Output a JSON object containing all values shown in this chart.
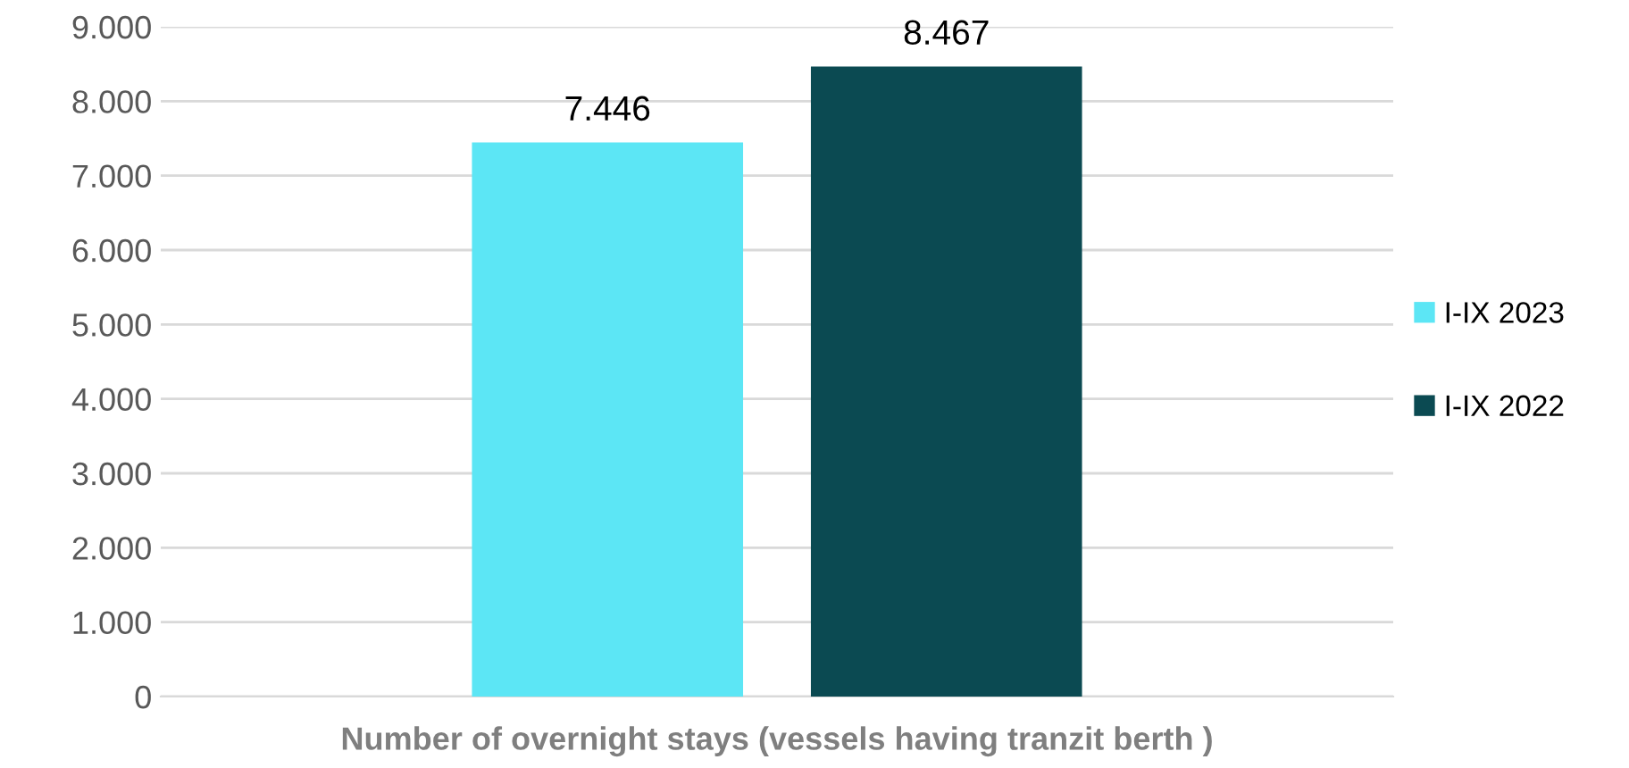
{
  "chart_data": {
    "type": "bar",
    "categories": [
      "Number of overnight stays (vessels having tranzit berth )"
    ],
    "series": [
      {
        "name": "I-IX 2023",
        "color": "#5ce6f5",
        "values": [
          7446
        ],
        "value_labels": [
          "7.446"
        ]
      },
      {
        "name": "I-IX 2022",
        "color": "#0b4a52",
        "values": [
          8467
        ],
        "value_labels": [
          "8.467"
        ]
      }
    ],
    "ylim": [
      0,
      9000
    ],
    "yticks": [
      {
        "value": 0,
        "label": "0"
      },
      {
        "value": 1000,
        "label": "1.000"
      },
      {
        "value": 2000,
        "label": "2.000"
      },
      {
        "value": 3000,
        "label": "3.000"
      },
      {
        "value": 4000,
        "label": "4.000"
      },
      {
        "value": 5000,
        "label": "5.000"
      },
      {
        "value": 6000,
        "label": "6.000"
      },
      {
        "value": 7000,
        "label": "7.000"
      },
      {
        "value": 8000,
        "label": "8.000"
      },
      {
        "value": 9000,
        "label": "9.000"
      }
    ],
    "grid": "y",
    "legend": "right"
  }
}
